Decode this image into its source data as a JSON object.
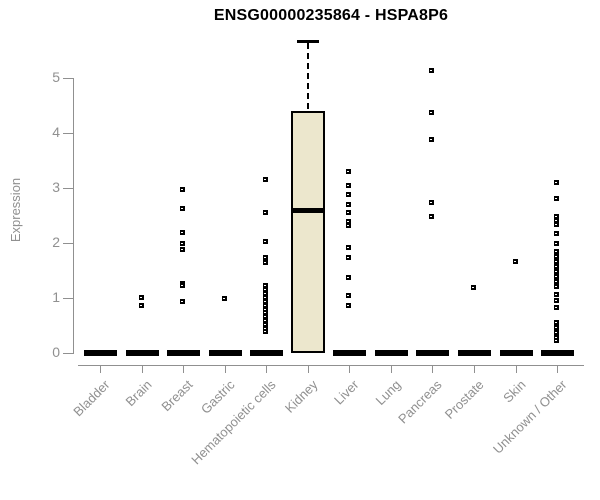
{
  "title": "ENSG00000235864 - HSPA8P6",
  "chart_data": {
    "type": "boxplot",
    "title": "ENSG00000235864 - HSPA8P6",
    "xlabel": "",
    "ylabel": "Expression",
    "ylim": [
      0,
      5.8
    ],
    "yticks": [
      0,
      1,
      2,
      3,
      4,
      5
    ],
    "grid": false,
    "legend": false,
    "categories": [
      "Bladder",
      "Brain",
      "Breast",
      "Gastric",
      "Hematopoietic cells",
      "Kidney",
      "Liver",
      "Lung",
      "Pancreas",
      "Prostate",
      "Skin",
      "Unknown / Other"
    ],
    "series": [
      {
        "category": "Bladder",
        "box": {
          "q1": 0,
          "median": 0,
          "q3": 0,
          "whisker_low": 0,
          "whisker_high": 0
        },
        "points": []
      },
      {
        "category": "Brain",
        "box": {
          "q1": 0,
          "median": 0,
          "q3": 0,
          "whisker_low": 0,
          "whisker_high": 0
        },
        "points": [
          1.0,
          0.86
        ]
      },
      {
        "category": "Breast",
        "box": {
          "q1": 0,
          "median": 0,
          "q3": 0,
          "whisker_low": 0,
          "whisker_high": 0
        },
        "points": [
          2.97,
          2.62,
          2.19,
          1.98,
          1.87,
          1.25,
          1.22,
          0.92
        ]
      },
      {
        "category": "Gastric",
        "box": {
          "q1": 0,
          "median": 0,
          "q3": 0,
          "whisker_low": 0,
          "whisker_high": 0
        },
        "points": [
          0.98
        ]
      },
      {
        "category": "Hematopoietic cells",
        "box": {
          "q1": 0,
          "median": 0,
          "q3": 0,
          "whisker_low": 0,
          "whisker_high": 0
        },
        "points": [
          3.15,
          2.55,
          2.02,
          1.72,
          1.64,
          1.22,
          1.15,
          1.08,
          1.0,
          0.93,
          0.86,
          0.79,
          0.72,
          0.65,
          0.58,
          0.51,
          0.44,
          0.39
        ]
      },
      {
        "category": "Kidney",
        "box": {
          "q1": 0,
          "median": 2.6,
          "q3": 4.4,
          "whisker_low": 0,
          "whisker_high": 5.67
        },
        "points": []
      },
      {
        "category": "Liver",
        "box": {
          "q1": 0,
          "median": 0,
          "q3": 0,
          "whisker_low": 0,
          "whisker_high": 0
        },
        "points": [
          3.3,
          3.03,
          2.87,
          2.7,
          2.55,
          2.39,
          2.31,
          1.91,
          1.73,
          1.36,
          1.04,
          0.86
        ]
      },
      {
        "category": "Lung",
        "box": {
          "q1": 0,
          "median": 0,
          "q3": 0,
          "whisker_low": 0,
          "whisker_high": 0
        },
        "points": []
      },
      {
        "category": "Pancreas",
        "box": {
          "q1": 0,
          "median": 0,
          "q3": 0,
          "whisker_low": 0,
          "whisker_high": 0
        },
        "points": [
          5.13,
          4.37,
          3.88,
          2.72,
          2.47
        ]
      },
      {
        "category": "Prostate",
        "box": {
          "q1": 0,
          "median": 0,
          "q3": 0,
          "whisker_low": 0,
          "whisker_high": 0
        },
        "points": [
          1.18
        ]
      },
      {
        "category": "Skin",
        "box": {
          "q1": 0,
          "median": 0,
          "q3": 0,
          "whisker_low": 0,
          "whisker_high": 0
        },
        "points": [
          1.65
        ]
      },
      {
        "category": "Unknown / Other",
        "box": {
          "q1": 0,
          "median": 0,
          "q3": 0,
          "whisker_low": 0,
          "whisker_high": 0
        },
        "points": [
          3.1,
          2.8,
          2.48,
          2.4,
          2.32,
          2.16,
          1.99,
          1.83,
          1.74,
          1.65,
          1.56,
          1.47,
          1.38,
          1.29,
          1.2,
          1.06,
          0.94,
          0.82,
          0.55,
          0.46,
          0.37,
          0.28,
          0.21
        ]
      }
    ],
    "colors": {
      "box_fill": "#ece7cd",
      "box_border": "#000000",
      "median": "#000000",
      "point": "#000000",
      "axis": "#909090",
      "axis_text": "#909090",
      "title_text": "#000000",
      "background": "#ffffff"
    }
  }
}
